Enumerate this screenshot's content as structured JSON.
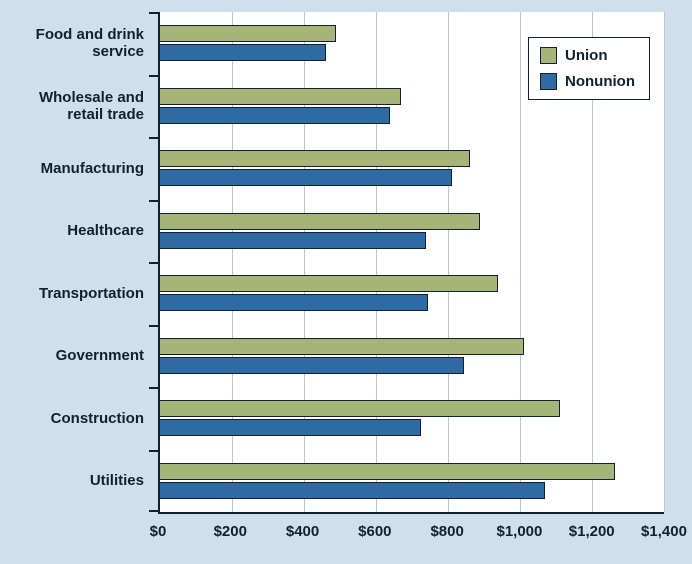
{
  "chart_data": {
    "type": "bar",
    "orientation": "horizontal",
    "title": "",
    "xlabel": "",
    "ylabel": "",
    "categories": [
      "Food and drink service",
      "Wholesale and retail trade",
      "Manufacturing",
      "Healthcare",
      "Transportation",
      "Government",
      "Construction",
      "Utilities"
    ],
    "series": [
      {
        "name": "Union",
        "color": "#a6b478",
        "values": [
          490,
          670,
          860,
          890,
          940,
          1010,
          1110,
          1265
        ]
      },
      {
        "name": "Nonunion",
        "color": "#2e6ba4",
        "values": [
          460,
          640,
          810,
          740,
          745,
          845,
          725,
          1070
        ]
      }
    ],
    "xlim": [
      0,
      1400
    ],
    "x_tick_step": 200,
    "x_tick_labels": [
      "$0",
      "$200",
      "$400",
      "$600",
      "$800",
      "$1,000",
      "$1,200",
      "$1,400"
    ],
    "legend_position": "top-right",
    "grid": "vertical"
  },
  "colors": {
    "background": "#cfe0ec",
    "plot_background": "#ffffff",
    "axis": "#13202f",
    "gridline": "#b7c7d6",
    "union_bar": "#a6b478",
    "nonunion_bar": "#2e6ba4",
    "text": "#13202f"
  }
}
